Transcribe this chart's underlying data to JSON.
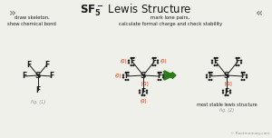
{
  "bg_color": "#f0f0eb",
  "title_color": "#1a1a1a",
  "arrow_color": "#2d7a1a",
  "red_color": "#cc2200",
  "black_color": "#1a1a1a",
  "gray_color": "#999999",
  "fig1_label": "fig. (1)",
  "fig2_label": "fig. (2)",
  "subtitle_left": "draw skeleton,\nshow chemical bond",
  "subtitle_right": "mark lone pairs,\ncalculate formal charge and check stability",
  "caption_right": "most stable lewis structure",
  "copyright": "© Rootmemory.com",
  "chevron_color": "#888888"
}
